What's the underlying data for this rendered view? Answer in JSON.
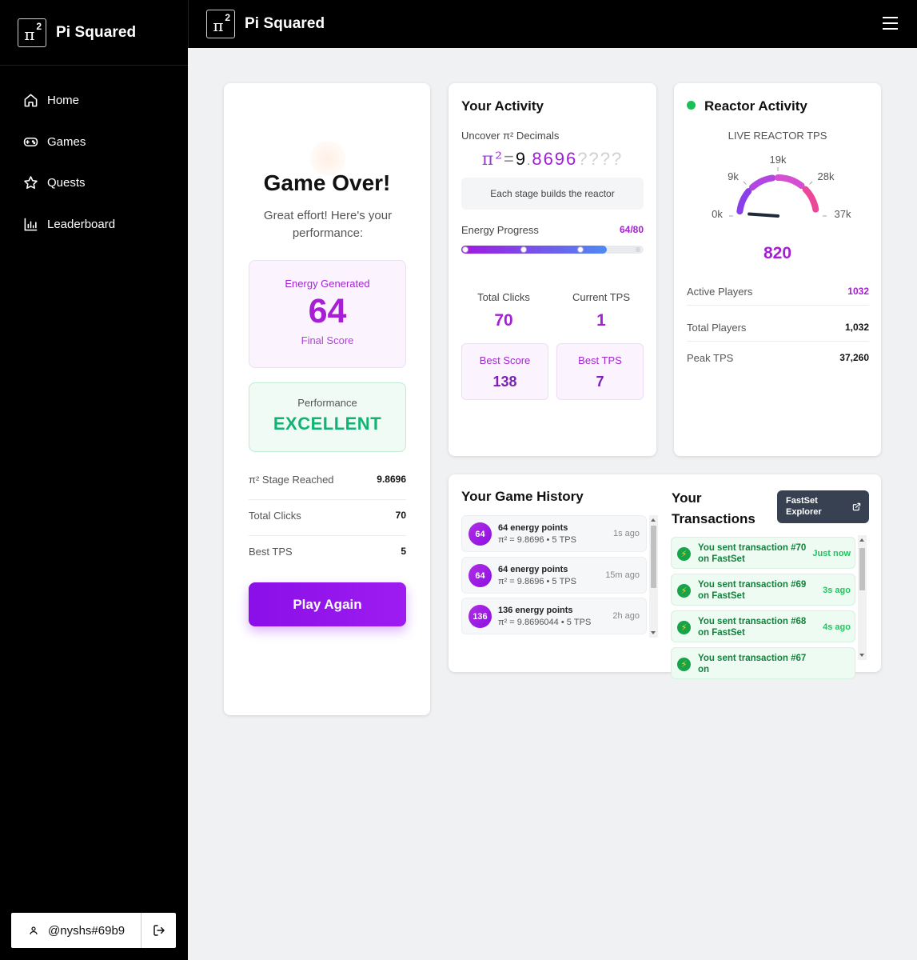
{
  "app": {
    "title": "Pi Squared",
    "logo": {
      "symbol": "π",
      "superscript": "2"
    }
  },
  "sidebar": {
    "items": [
      {
        "label": "Home",
        "icon": "home-icon"
      },
      {
        "label": "Games",
        "icon": "gamepad-icon"
      },
      {
        "label": "Quests",
        "icon": "star-icon"
      },
      {
        "label": "Leaderboard",
        "icon": "bar-chart-icon"
      }
    ],
    "user": {
      "handle": "@nyshs#69b9"
    }
  },
  "game_over": {
    "title": "Game Over!",
    "subtitle": "Great effort! Here's your performance:",
    "energy_label": "Energy Generated",
    "energy_value": "64",
    "final_score_label": "Final Score",
    "performance_label": "Performance",
    "performance_value": "EXCELLENT",
    "stats": [
      {
        "label": "π² Stage Reached",
        "value": "9.8696"
      },
      {
        "label": "Total Clicks",
        "value": "70"
      },
      {
        "label": "Best TPS",
        "value": "5"
      }
    ],
    "play_again_label": "Play Again"
  },
  "activity": {
    "title": "Your Activity",
    "uncover_label": "Uncover π² Decimals",
    "pi_expr": {
      "symbol": "π²",
      "equals": "=",
      "integer": "9",
      "dot": ".",
      "revealed": "8696",
      "hidden": "????"
    },
    "stage_text": "Each stage builds the reactor",
    "energy_progress_label": "Energy Progress",
    "energy_progress_value": "64/80",
    "energy_progress": {
      "current": 64,
      "max": 80
    },
    "total_clicks_label": "Total Clicks",
    "total_clicks": "70",
    "current_tps_label": "Current TPS",
    "current_tps": "1",
    "best_score_label": "Best Score",
    "best_score": "138",
    "best_tps_label": "Best TPS",
    "best_tps": "7"
  },
  "reactor": {
    "title": "Reactor Activity",
    "live_label": "LIVE REACTOR TPS",
    "gauge": {
      "min": 0,
      "max": 37260,
      "value": 820,
      "labels": [
        "0k",
        "9k",
        "19k",
        "28k",
        "37k"
      ]
    },
    "value": "820",
    "rows": [
      {
        "label": "Active Players",
        "value": "1032"
      },
      {
        "label": "Total Players",
        "value": "1,032"
      },
      {
        "label": "Peak TPS",
        "value": "37,260"
      }
    ],
    "status_color": "#19c05a"
  },
  "history": {
    "title": "Your Game History",
    "items": [
      {
        "badge": "64",
        "title": "64 energy points",
        "detail": "π² = 9.8696 • 5 TPS",
        "ago": "1s ago"
      },
      {
        "badge": "64",
        "title": "64 energy points",
        "detail": "π² = 9.8696 • 5 TPS",
        "ago": "15m ago"
      },
      {
        "badge": "136",
        "title": "136 energy points",
        "detail": "π² = 9.8696044 • 5 TPS",
        "ago": "2h ago"
      }
    ]
  },
  "transactions": {
    "title_line1": "Your",
    "title_line2": "Transactions",
    "explorer_line1": "FastSet",
    "explorer_line2": "Explorer",
    "items": [
      {
        "text": "You sent transaction #70 on FastSet",
        "ago": "Just now"
      },
      {
        "text": "You sent transaction #69 on FastSet",
        "ago": "3s ago"
      },
      {
        "text": "You sent transaction #68 on FastSet",
        "ago": "4s ago"
      },
      {
        "text": "You sent transaction #67 on",
        "ago": ""
      }
    ]
  },
  "colors": {
    "accent": "#a61fd3",
    "success": "#12b273",
    "sidebar_bg": "#000000"
  }
}
